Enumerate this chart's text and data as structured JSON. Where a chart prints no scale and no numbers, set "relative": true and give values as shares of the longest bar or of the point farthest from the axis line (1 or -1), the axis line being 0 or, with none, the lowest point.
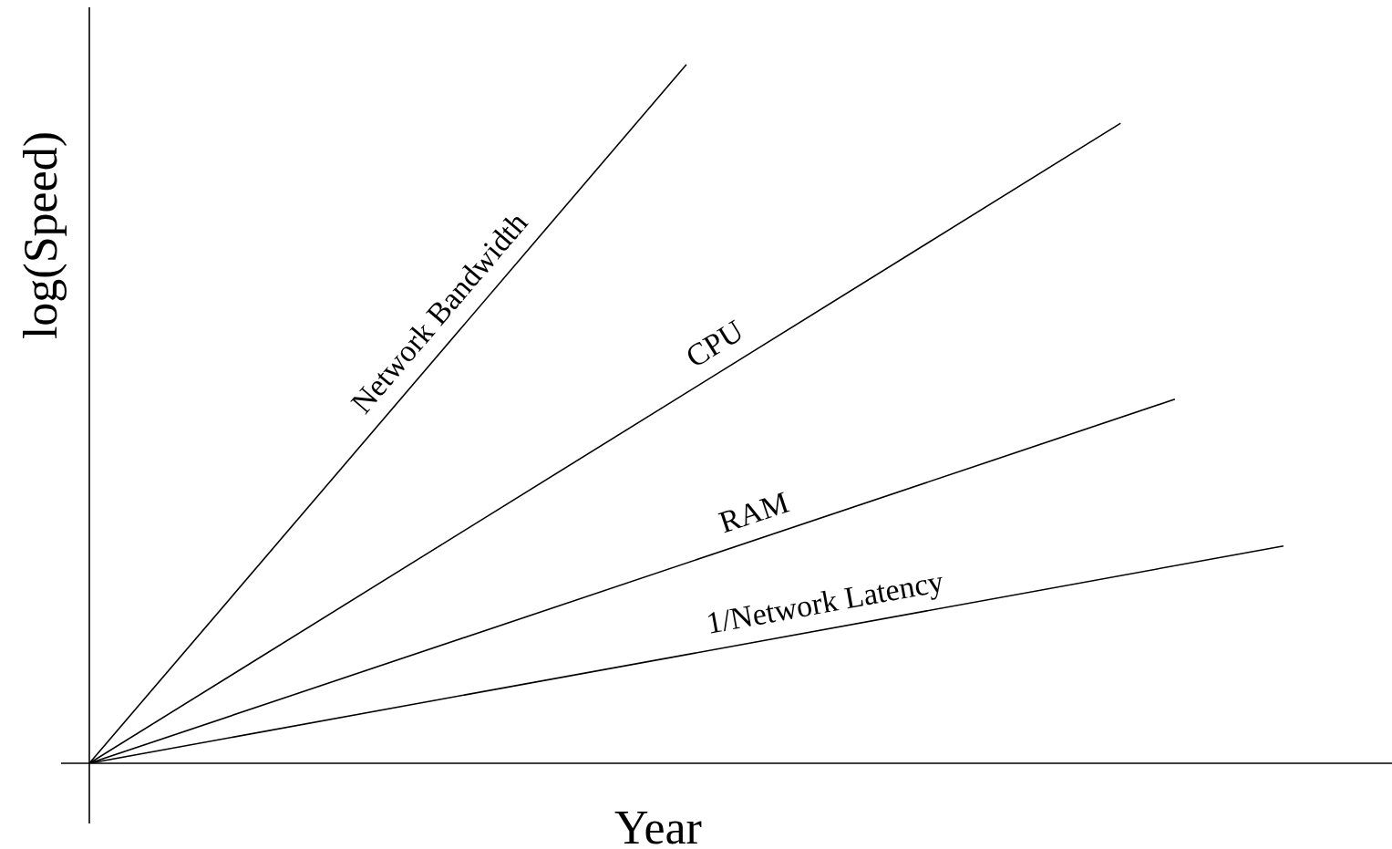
{
  "chart_data": {
    "type": "line",
    "xlabel": "Year",
    "ylabel": "log(Speed)",
    "relative": true,
    "legend": false,
    "marker": "none",
    "line_style": "solid",
    "categories": [
      null,
      null,
      null,
      null,
      null,
      null,
      null,
      null,
      null,
      null,
      null,
      null,
      null,
      null,
      null,
      null,
      null,
      null,
      null,
      null,
      null,
      null,
      null,
      null,
      null
    ],
    "series": [
      {
        "name": "Network Bandwidth",
        "color": "#000000",
        "values": [
          0,
          null,
          null,
          null,
          null,
          null,
          null,
          null,
          null,
          null,
          null,
          1,
          null,
          null,
          null,
          null,
          null,
          null,
          null,
          null,
          null,
          null,
          null,
          null,
          null
        ]
      },
      {
        "name": "CPU",
        "color": "#000000",
        "values": [
          0,
          null,
          null,
          null,
          null,
          null,
          null,
          null,
          null,
          null,
          null,
          null,
          null,
          null,
          null,
          null,
          null,
          null,
          null,
          0.916,
          null,
          null,
          null,
          null,
          null
        ]
      },
      {
        "name": "RAM",
        "color": "#000000",
        "values": [
          0,
          null,
          null,
          null,
          null,
          null,
          null,
          null,
          null,
          null,
          null,
          null,
          null,
          null,
          null,
          null,
          null,
          null,
          null,
          null,
          0.521,
          null,
          null,
          null,
          null
        ]
      },
      {
        "name": "1/Network Latency",
        "color": "#000000",
        "values": [
          0,
          null,
          null,
          null,
          null,
          null,
          null,
          null,
          null,
          null,
          null,
          null,
          null,
          null,
          null,
          null,
          null,
          null,
          null,
          null,
          null,
          null,
          0.311,
          null,
          null
        ]
      }
    ]
  }
}
